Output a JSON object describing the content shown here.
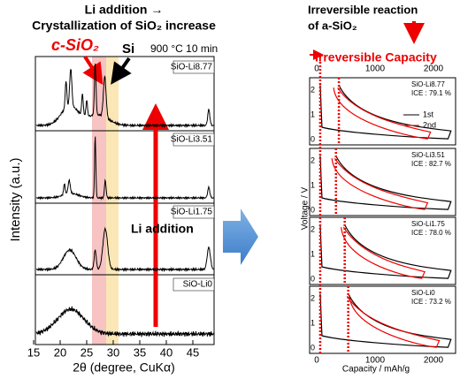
{
  "left": {
    "title_line1": "Li addition →",
    "title_line2": "Crystallization of SiO₂ increase",
    "c_sio2": "c-SiO₂",
    "si": "Si",
    "condition": "900 °C 10 min",
    "samples": [
      "SiO-Li8.77",
      "SiO-Li3.51",
      "SiO-Li1.75",
      "SiO-Li0"
    ],
    "arrow_label": "Li addition",
    "y_label": "Intensity (a.u.)",
    "x_label": "2θ (degree, CuKα)",
    "x_ticks": [
      "15",
      "20",
      "25",
      "30",
      "35",
      "40",
      "45"
    ]
  },
  "right": {
    "title_line1": "Irreversible reaction",
    "title_line2": "of a-SiO₂",
    "irreversible": "Irreversible Capacity",
    "top_ticks": [
      "0",
      "1000",
      "2000"
    ],
    "bottom_ticks": [
      "0",
      "1000",
      "2000"
    ],
    "x_label": "Capacity / mAh/g",
    "y_label": "Voltage / V",
    "y_ticks": [
      "0",
      "1",
      "2"
    ],
    "legend": [
      "1st",
      "2nd"
    ],
    "panels": [
      {
        "sample": "SiO-Li8.77",
        "ice": "ICE : 79.1 %"
      },
      {
        "sample": "SiO-Li3.51",
        "ice": "ICE : 82.7 %"
      },
      {
        "sample": "SiO-Li1.75",
        "ice": "ICE : 78.0 %"
      },
      {
        "sample": "SiO-Li0",
        "ice": "ICE : 73.2 %"
      }
    ]
  }
}
